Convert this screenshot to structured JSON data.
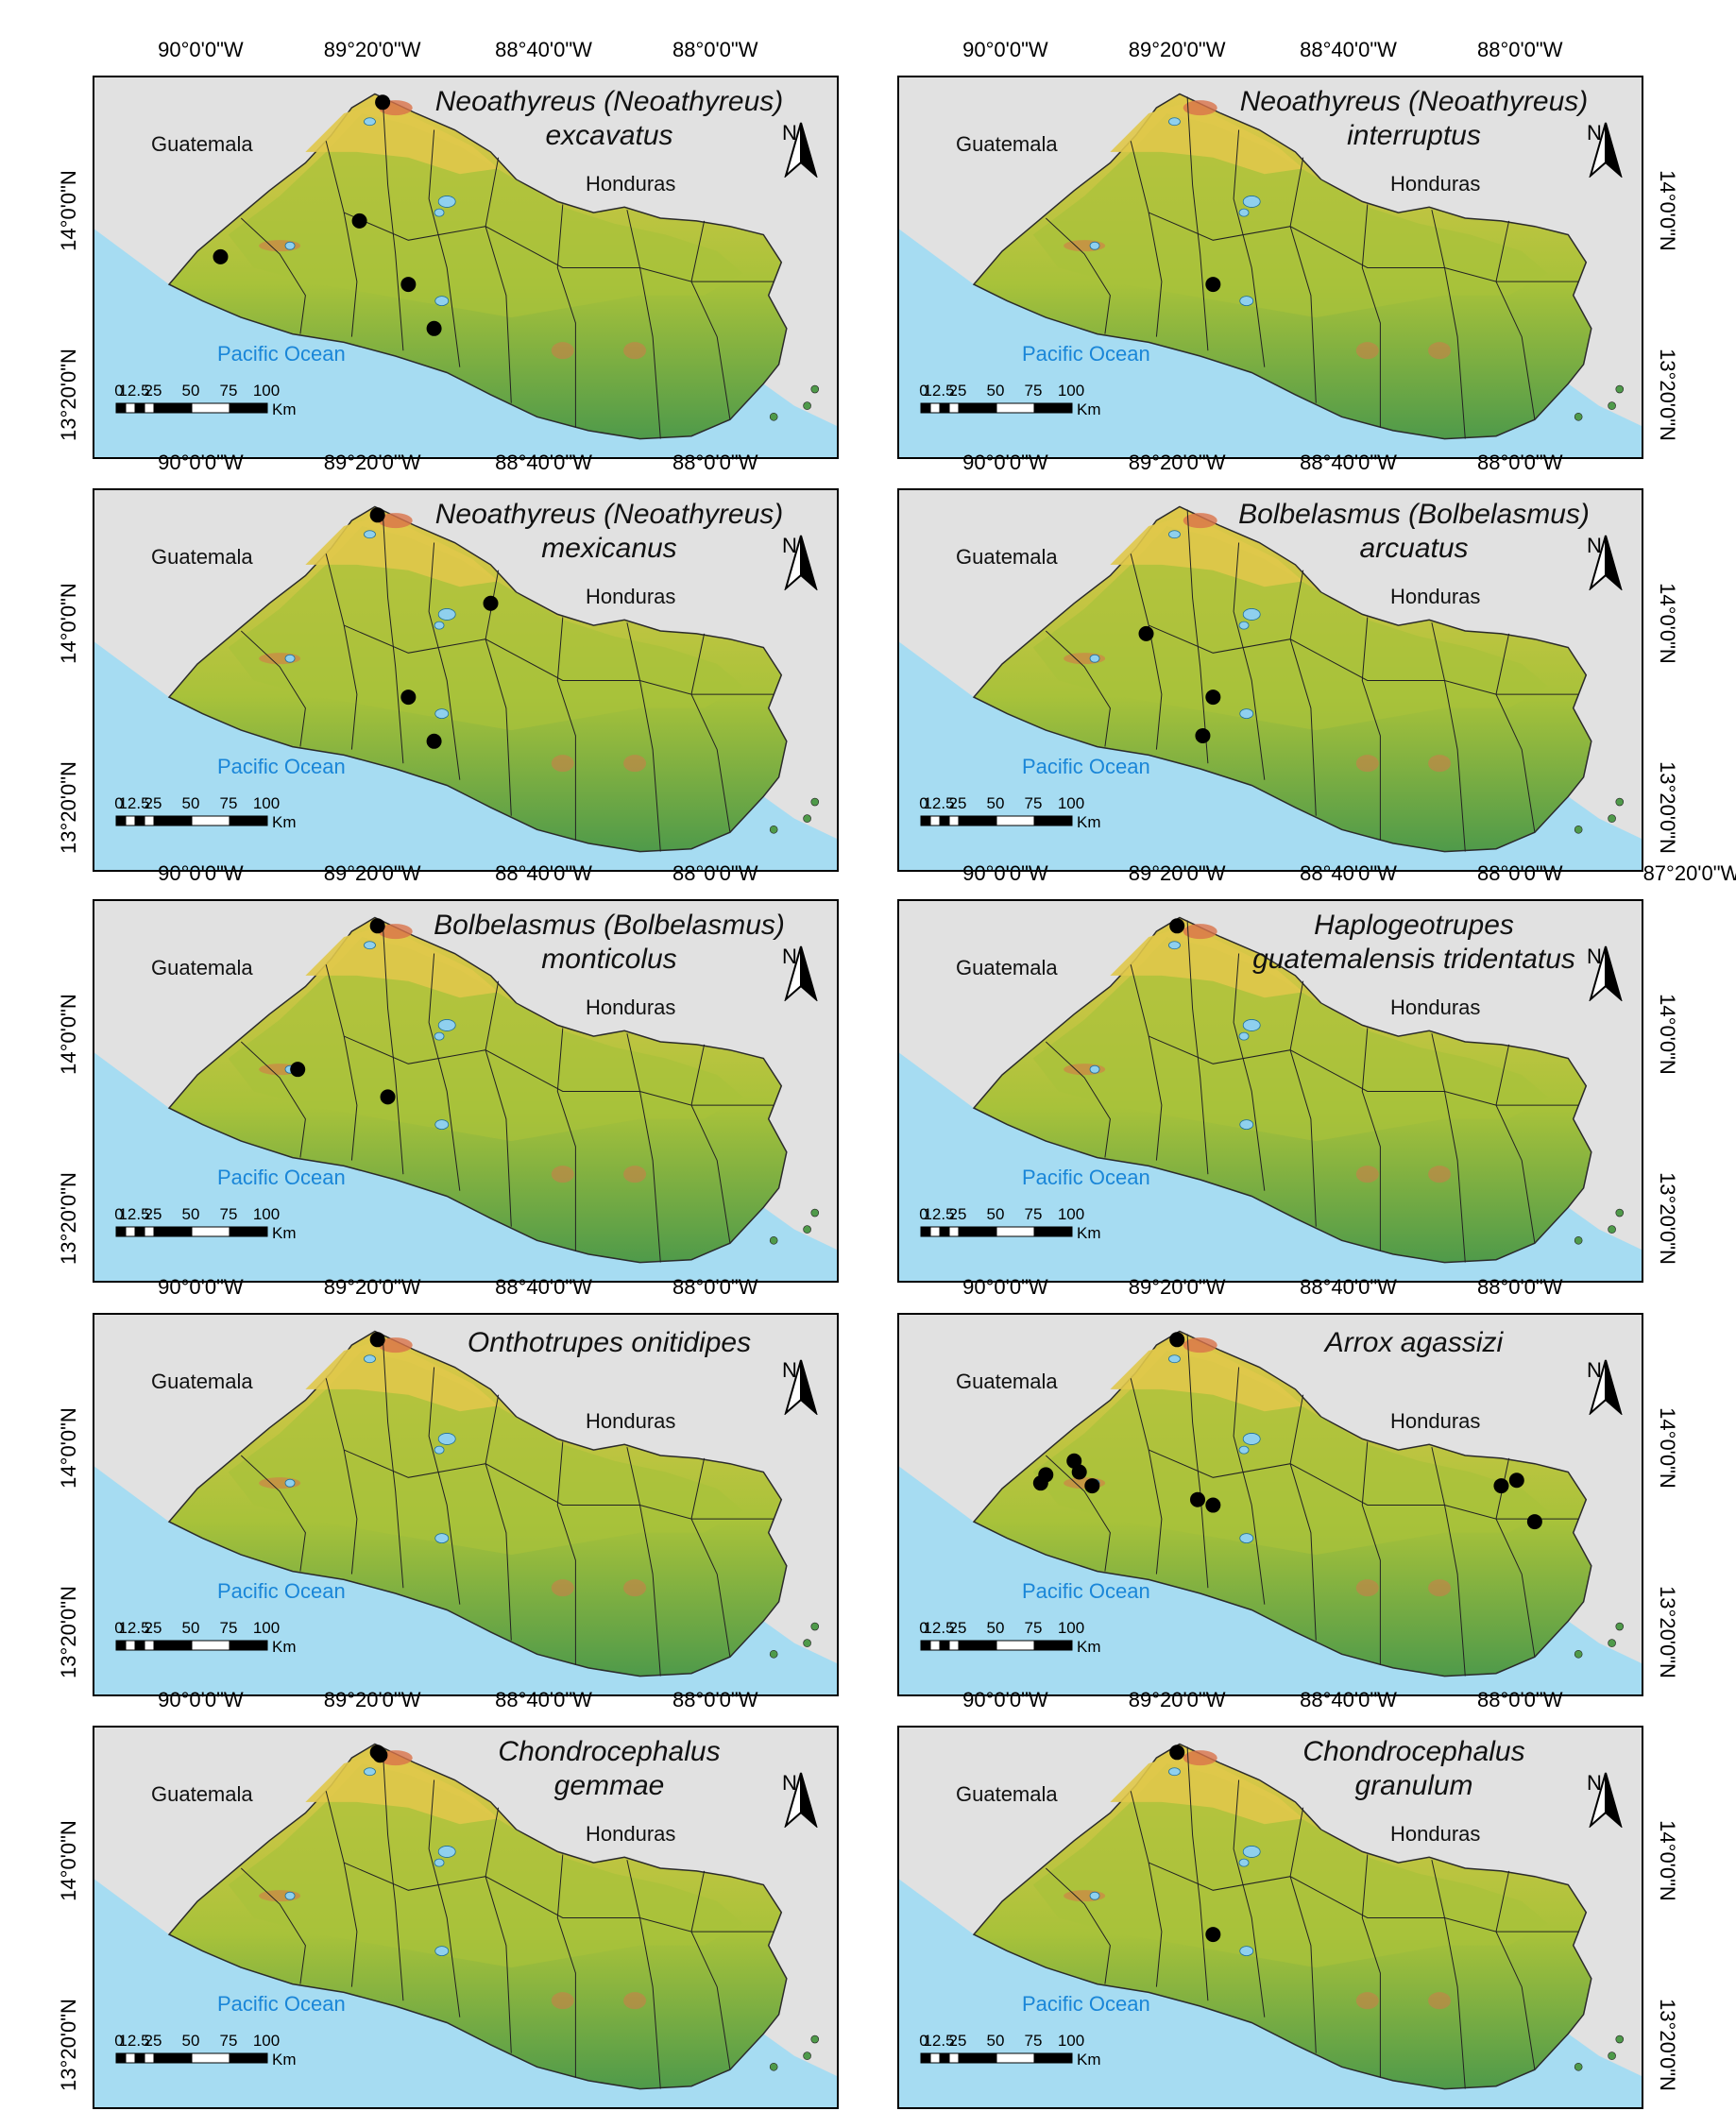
{
  "axis": {
    "lon_ticks": [
      "90°0'0\"W",
      "89°20'0\"W",
      "88°40'0\"W",
      "88°0'0\"W"
    ],
    "extra_lon_tick": "87°20'0\"W",
    "lat_ticks": [
      "14°0'0\"N",
      "13°20'0\"N"
    ]
  },
  "labels": {
    "guatemala": "Guatemala",
    "honduras": "Honduras",
    "ocean": "Pacific Ocean",
    "north": "N"
  },
  "scale_bar": {
    "ticks": [
      "0",
      "12.5",
      "25",
      "50",
      "75",
      "100"
    ],
    "unit": "Km"
  },
  "colors": {
    "ocean": "#a6dcf2",
    "background": "#e1e1e1",
    "land_lowland": "#4f9a4a",
    "land_mid": "#a8c23a",
    "land_high": "#e0c84a",
    "land_peak": "#d9734a",
    "lake": "#8fd0ee",
    "record_point": "#000000"
  },
  "panels": [
    {
      "title": [
        "Neoathyreus (Neoathyreus)",
        "excavatus"
      ],
      "records": [
        [
          -89.3,
          14.4
        ],
        [
          -89.39,
          13.97
        ],
        [
          -89.93,
          13.84
        ],
        [
          -89.2,
          13.74
        ],
        [
          -89.1,
          13.58
        ]
      ]
    },
    {
      "title": [
        "Neoathyreus (Neoathyreus)",
        "interruptus"
      ],
      "records": [
        [
          -89.2,
          13.74
        ]
      ]
    },
    {
      "title": [
        "Neoathyreus (Neoathyreus)",
        "mexicanus"
      ],
      "records": [
        [
          -89.32,
          14.4
        ],
        [
          -88.88,
          14.08
        ],
        [
          -89.2,
          13.74
        ],
        [
          -89.1,
          13.58
        ]
      ]
    },
    {
      "title": [
        "Bolbelasmus (Bolbelasmus)",
        "arcuatus"
      ],
      "records": [
        [
          -89.46,
          13.97
        ],
        [
          -89.2,
          13.74
        ],
        [
          -89.24,
          13.6
        ]
      ]
    },
    {
      "title": [
        "Bolbelasmus (Bolbelasmus)",
        "monticolus"
      ],
      "records": [
        [
          -89.32,
          14.4
        ],
        [
          -89.63,
          13.88
        ],
        [
          -89.28,
          13.78
        ]
      ]
    },
    {
      "title": [
        "Haplogeotrupes",
        "guatemalensis tridentatus"
      ],
      "records": [
        [
          -89.34,
          14.4
        ]
      ]
    },
    {
      "title": [
        "Onthotrupes onitidipes"
      ],
      "records": [
        [
          -89.32,
          14.4
        ]
      ]
    },
    {
      "title": [
        "Arrox agassizi"
      ],
      "records": [
        [
          -89.34,
          14.4
        ],
        [
          -89.74,
          13.96
        ],
        [
          -89.85,
          13.91
        ],
        [
          -89.87,
          13.88
        ],
        [
          -89.72,
          13.92
        ],
        [
          -89.67,
          13.87
        ],
        [
          -89.26,
          13.82
        ],
        [
          -89.2,
          13.8
        ],
        [
          -88.08,
          13.87
        ],
        [
          -88.02,
          13.89
        ],
        [
          -87.95,
          13.74
        ]
      ]
    },
    {
      "title": [
        "Chondrocephalus",
        "gemmae"
      ],
      "records": [
        [
          -89.32,
          14.4
        ],
        [
          -89.31,
          14.39
        ]
      ]
    },
    {
      "title": [
        "Chondrocephalus",
        "granulum"
      ],
      "records": [
        [
          -89.34,
          14.4
        ],
        [
          -89.2,
          13.74
        ]
      ]
    }
  ]
}
